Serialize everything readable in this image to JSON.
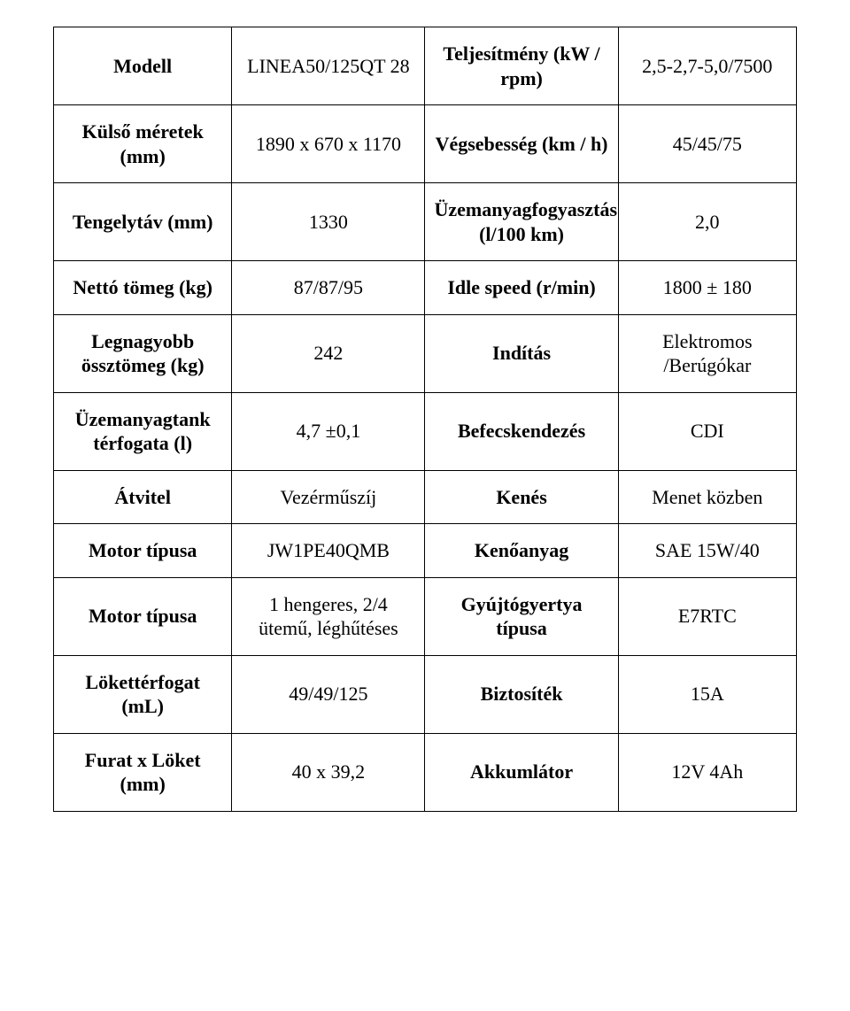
{
  "table": {
    "font_family": "Times New Roman",
    "font_size_pt": 17,
    "border_color": "#000000",
    "background_color": "#ffffff",
    "text_color": "#000000",
    "column_widths_pct": [
      24,
      26,
      26,
      24
    ],
    "rows": [
      {
        "cells": [
          {
            "text": "Modell",
            "bold": true
          },
          {
            "text": "LINEA50/125QT 28",
            "bold": false
          },
          {
            "text": "Teljesítmény (kW / rpm)",
            "bold": true
          },
          {
            "text": "2,5-2,7-5,0/7500",
            "bold": false
          }
        ]
      },
      {
        "cells": [
          {
            "text": "Külső méretek (mm)",
            "bold": true
          },
          {
            "text": "1890 x 670 x 1170",
            "bold": false
          },
          {
            "text": "Végsebesség (km / h)",
            "bold": true
          },
          {
            "text": "45/45/75",
            "bold": false
          }
        ]
      },
      {
        "cells": [
          {
            "text": "Tengelytáv (mm)",
            "bold": true
          },
          {
            "text": "1330",
            "bold": false
          },
          {
            "text": "Üzemanyagfogyasztás (l/100 km)",
            "bold": true
          },
          {
            "text": "2,0",
            "bold": false
          }
        ]
      },
      {
        "cells": [
          {
            "text": "Nettó tömeg (kg)",
            "bold": true
          },
          {
            "text": "87/87/95",
            "bold": false
          },
          {
            "text": "Idle speed (r/min)",
            "bold": true
          },
          {
            "text": "1800 ± 180",
            "bold": false
          }
        ]
      },
      {
        "cells": [
          {
            "text": "Legnagyobb össztömeg (kg)",
            "bold": true
          },
          {
            "text": "242",
            "bold": false
          },
          {
            "text": "Indítás",
            "bold": true
          },
          {
            "text": "Elektromos /Berúgókar",
            "bold": false
          }
        ]
      },
      {
        "cells": [
          {
            "text": "Üzemanyagtank térfogata (l)",
            "bold": true
          },
          {
            "text": "4,7 ±0,1",
            "bold": false
          },
          {
            "text": "Befecskendezés",
            "bold": true
          },
          {
            "text": "CDI",
            "bold": false
          }
        ]
      },
      {
        "cells": [
          {
            "text": "Átvitel",
            "bold": true
          },
          {
            "text": "Vezérműszíj",
            "bold": false
          },
          {
            "text": "Kenés",
            "bold": true
          },
          {
            "text": "Menet közben",
            "bold": false
          }
        ]
      },
      {
        "cells": [
          {
            "text": "Motor típusa",
            "bold": true
          },
          {
            "text": "JW1PE40QMB",
            "bold": false
          },
          {
            "text": "Kenőanyag",
            "bold": true
          },
          {
            "text": "SAE 15W/40",
            "bold": false
          }
        ]
      },
      {
        "cells": [
          {
            "text": "Motor típusa",
            "bold": true
          },
          {
            "text": "1 hengeres, 2/4 ütemű, léghűtéses",
            "bold": false
          },
          {
            "text": "Gyújtógyertya típusa",
            "bold": true
          },
          {
            "text": "E7RTC",
            "bold": false
          }
        ]
      },
      {
        "cells": [
          {
            "text": "Lökettérfogat (mL)",
            "bold": true
          },
          {
            "text": "49/49/125",
            "bold": false
          },
          {
            "text": "Biztosíték",
            "bold": true
          },
          {
            "text": "15A",
            "bold": false
          }
        ]
      },
      {
        "cells": [
          {
            "text": "Furat x Löket (mm)",
            "bold": true
          },
          {
            "text": "40 x 39,2",
            "bold": false
          },
          {
            "text": "Akkumlátor",
            "bold": true
          },
          {
            "text": "12V 4Ah",
            "bold": false
          }
        ]
      }
    ]
  }
}
